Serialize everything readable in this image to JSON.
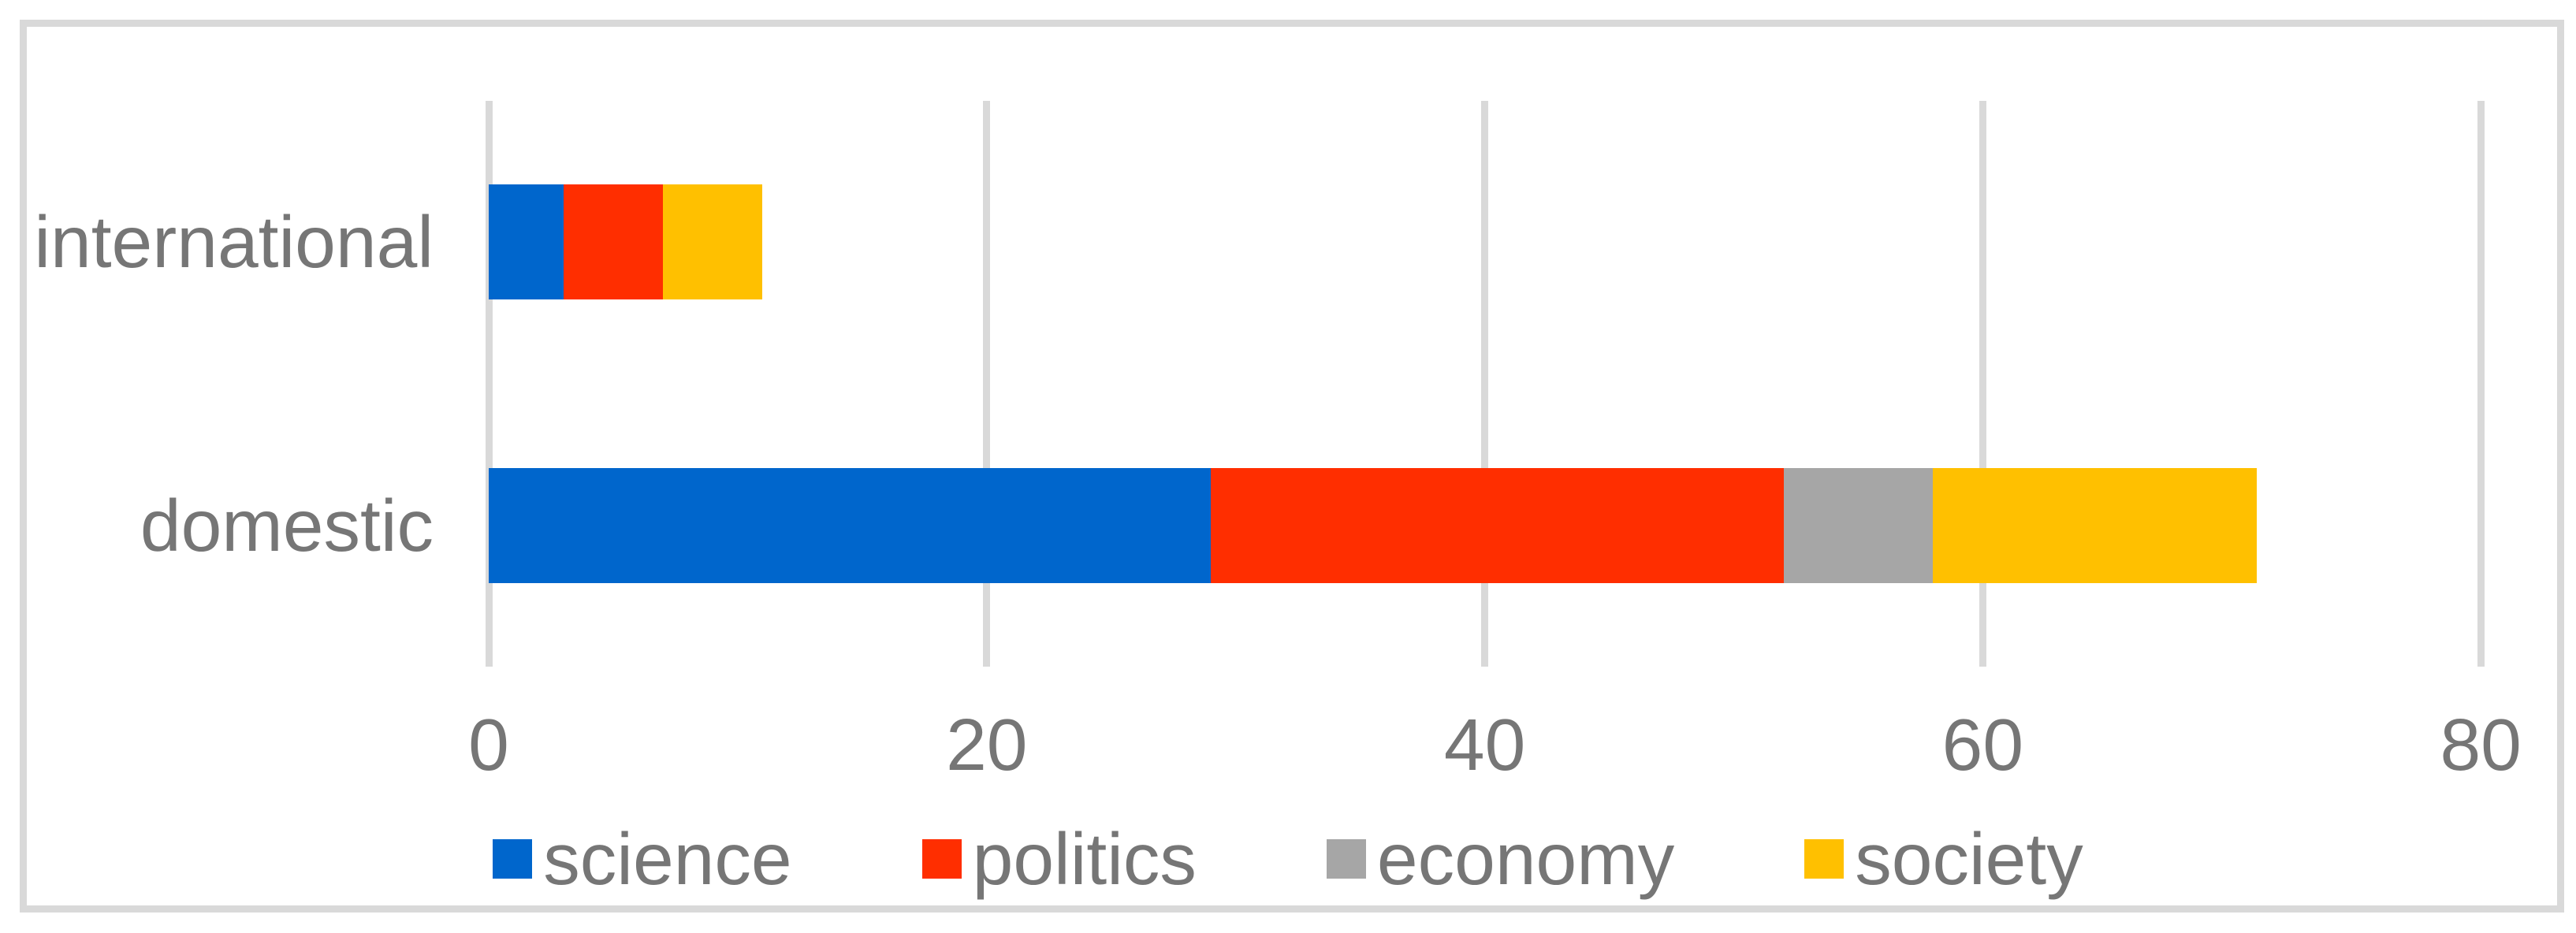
{
  "chart_data": {
    "type": "bar",
    "orientation": "horizontal",
    "stacked": true,
    "title": "",
    "categories": [
      "international",
      "domestic"
    ],
    "series": [
      {
        "name": "science",
        "color": "#0066cc",
        "values": [
          3,
          29
        ]
      },
      {
        "name": "politics",
        "color": "#ff2e00",
        "values": [
          4,
          23
        ]
      },
      {
        "name": "economy",
        "color": "#a6a6a6",
        "values": [
          0,
          6
        ]
      },
      {
        "name": "society",
        "color": "#ffc000",
        "values": [
          4,
          13
        ]
      }
    ],
    "category_totals": [
      11,
      71
    ],
    "x_ticks": [
      0,
      20,
      40,
      60,
      80
    ],
    "xlim": [
      0,
      80
    ],
    "xlabel": "",
    "ylabel": "",
    "grid": "vertical",
    "legend_position": "bottom"
  },
  "styles": {
    "grid_color": "#d9d9d9",
    "frame_color": "#d9d9d9",
    "text_color": "#767676",
    "background": "#ffffff"
  }
}
